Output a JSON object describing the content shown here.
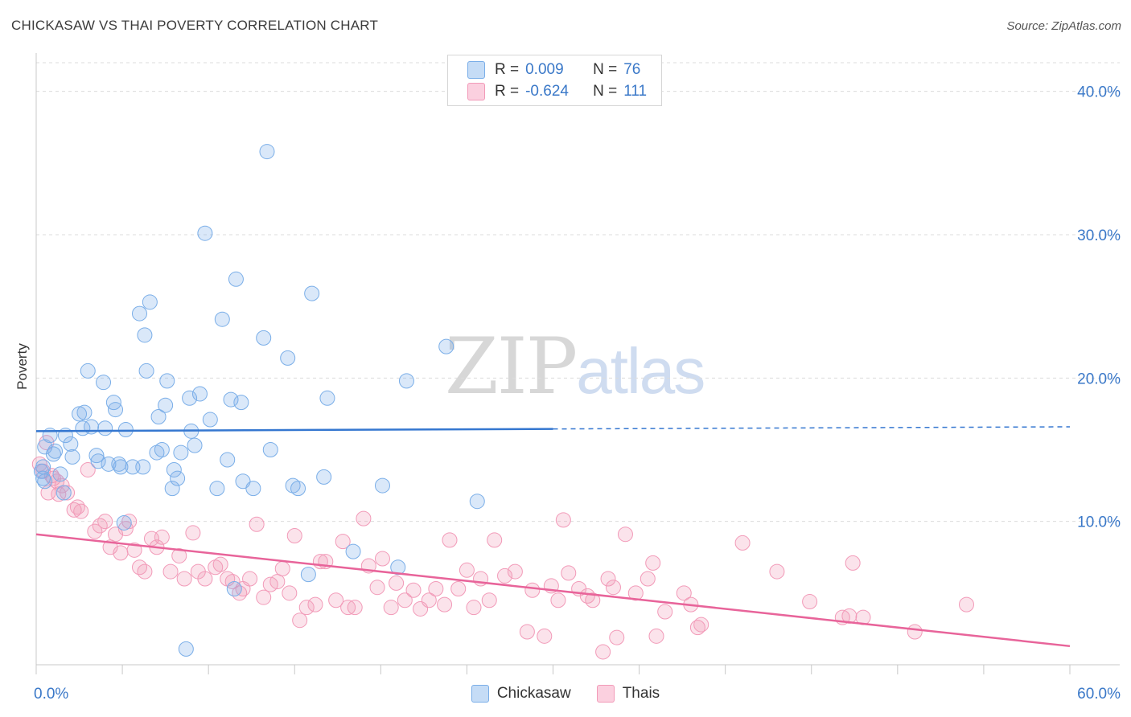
{
  "header": {
    "title": "CHICKASAW VS THAI POVERTY CORRELATION CHART",
    "source": "Source: ZipAtlas.com"
  },
  "watermark": {
    "zip": "ZIP",
    "atlas": "atlas"
  },
  "legend": {
    "rows": [
      {
        "r_label": "R =",
        "r_value": "0.009",
        "n_label": "N =",
        "n_value": "76",
        "color": "#7aaee8"
      },
      {
        "r_label": "R =",
        "r_value": "-0.624",
        "n_label": "N =",
        "n_value": "111",
        "color": "#f29ab8"
      }
    ]
  },
  "bottom_legend": [
    "Chickasaw",
    "Thais"
  ],
  "chart_data": {
    "type": "scatter",
    "title": "CHICKASAW VS THAI POVERTY CORRELATION CHART",
    "xlabel": "",
    "ylabel": "Poverty",
    "xlim": [
      0,
      60
    ],
    "ylim": [
      0,
      42
    ],
    "x_tick_labels": [
      "0.0%",
      "60.0%"
    ],
    "y_ticks": [
      10,
      20,
      30,
      40
    ],
    "y_tick_labels": [
      "10.0%",
      "20.0%",
      "30.0%",
      "40.0%"
    ],
    "grid": true,
    "legend_position": "top-center",
    "colors": {
      "chickasaw": "#7aaee8",
      "thais": "#f29ab8",
      "chickasaw_line": "#3577d0",
      "thais_line": "#e8649a",
      "tick_label": "#3a78c8"
    },
    "series": [
      {
        "name": "Chickasaw",
        "points": [
          [
            0.3,
            13.5
          ],
          [
            0.4,
            13.0
          ],
          [
            0.5,
            15.2
          ],
          [
            0.8,
            16.0
          ],
          [
            1.0,
            14.7
          ],
          [
            1.1,
            14.9
          ],
          [
            1.4,
            13.3
          ],
          [
            1.6,
            12.0
          ],
          [
            1.7,
            16.0
          ],
          [
            2.0,
            15.4
          ],
          [
            2.1,
            14.5
          ],
          [
            2.5,
            17.5
          ],
          [
            2.7,
            16.5
          ],
          [
            2.8,
            17.6
          ],
          [
            3.0,
            20.5
          ],
          [
            3.2,
            16.6
          ],
          [
            3.5,
            14.6
          ],
          [
            3.6,
            14.2
          ],
          [
            3.9,
            19.7
          ],
          [
            4.0,
            16.5
          ],
          [
            4.2,
            14.0
          ],
          [
            4.5,
            18.3
          ],
          [
            4.6,
            17.8
          ],
          [
            4.8,
            14.0
          ],
          [
            4.9,
            13.8
          ],
          [
            5.1,
            9.9
          ],
          [
            5.2,
            16.4
          ],
          [
            5.6,
            13.8
          ],
          [
            6.0,
            24.5
          ],
          [
            6.2,
            13.8
          ],
          [
            6.3,
            23.0
          ],
          [
            6.4,
            20.5
          ],
          [
            6.6,
            25.3
          ],
          [
            7.0,
            14.8
          ],
          [
            7.1,
            17.3
          ],
          [
            7.3,
            15.0
          ],
          [
            7.5,
            18.1
          ],
          [
            7.6,
            19.8
          ],
          [
            7.9,
            12.3
          ],
          [
            8.0,
            13.6
          ],
          [
            8.2,
            13.0
          ],
          [
            8.4,
            14.8
          ],
          [
            8.7,
            1.1
          ],
          [
            8.9,
            18.6
          ],
          [
            9.0,
            16.3
          ],
          [
            9.2,
            15.3
          ],
          [
            9.5,
            18.9
          ],
          [
            9.8,
            30.1
          ],
          [
            10.1,
            17.1
          ],
          [
            10.5,
            12.3
          ],
          [
            10.8,
            24.1
          ],
          [
            11.1,
            14.3
          ],
          [
            11.3,
            18.5
          ],
          [
            11.5,
            5.3
          ],
          [
            11.6,
            26.9
          ],
          [
            11.9,
            18.3
          ],
          [
            12.0,
            12.8
          ],
          [
            12.6,
            12.3
          ],
          [
            13.2,
            22.8
          ],
          [
            13.4,
            35.8
          ],
          [
            13.6,
            15.0
          ],
          [
            14.6,
            21.4
          ],
          [
            14.9,
            12.5
          ],
          [
            15.2,
            12.3
          ],
          [
            15.8,
            6.3
          ],
          [
            16.0,
            25.9
          ],
          [
            16.7,
            13.1
          ],
          [
            16.9,
            18.6
          ],
          [
            18.4,
            7.9
          ],
          [
            20.1,
            12.5
          ],
          [
            21.0,
            6.8
          ],
          [
            21.5,
            19.8
          ],
          [
            23.8,
            22.2
          ],
          [
            25.6,
            11.4
          ],
          [
            0.4,
            13.8
          ],
          [
            0.5,
            12.8
          ]
        ]
      },
      {
        "name": "Thais",
        "points": [
          [
            0.2,
            14.0
          ],
          [
            0.4,
            13.5
          ],
          [
            0.6,
            15.5
          ],
          [
            0.9,
            13.2
          ],
          [
            1.0,
            13.0
          ],
          [
            1.2,
            12.8
          ],
          [
            1.5,
            12.5
          ],
          [
            1.8,
            12.0
          ],
          [
            2.2,
            10.8
          ],
          [
            2.6,
            10.7
          ],
          [
            3.0,
            13.6
          ],
          [
            3.4,
            9.3
          ],
          [
            3.7,
            9.7
          ],
          [
            4.0,
            10.0
          ],
          [
            4.3,
            8.2
          ],
          [
            4.6,
            9.1
          ],
          [
            4.9,
            7.8
          ],
          [
            5.2,
            9.5
          ],
          [
            5.4,
            10.0
          ],
          [
            5.7,
            8.0
          ],
          [
            6.0,
            6.8
          ],
          [
            6.3,
            6.5
          ],
          [
            6.7,
            8.8
          ],
          [
            7.0,
            8.2
          ],
          [
            7.3,
            8.9
          ],
          [
            7.8,
            6.5
          ],
          [
            8.3,
            7.6
          ],
          [
            8.6,
            6.0
          ],
          [
            9.1,
            9.2
          ],
          [
            9.4,
            6.5
          ],
          [
            9.8,
            6.0
          ],
          [
            10.4,
            6.8
          ],
          [
            10.7,
            7.0
          ],
          [
            11.1,
            6.0
          ],
          [
            11.4,
            5.8
          ],
          [
            11.8,
            5.0
          ],
          [
            12.0,
            5.3
          ],
          [
            12.4,
            6.0
          ],
          [
            12.8,
            9.8
          ],
          [
            13.2,
            4.7
          ],
          [
            13.6,
            5.6
          ],
          [
            14.0,
            5.8
          ],
          [
            14.3,
            6.7
          ],
          [
            14.7,
            5.0
          ],
          [
            15.0,
            9.0
          ],
          [
            15.3,
            3.1
          ],
          [
            15.7,
            4.0
          ],
          [
            16.2,
            4.2
          ],
          [
            16.5,
            7.2
          ],
          [
            16.8,
            7.2
          ],
          [
            17.4,
            4.5
          ],
          [
            17.8,
            8.6
          ],
          [
            18.1,
            4.0
          ],
          [
            18.5,
            4.0
          ],
          [
            19.0,
            10.2
          ],
          [
            19.3,
            6.9
          ],
          [
            19.8,
            5.4
          ],
          [
            20.1,
            7.4
          ],
          [
            20.6,
            4.0
          ],
          [
            20.9,
            5.7
          ],
          [
            21.4,
            4.5
          ],
          [
            21.9,
            5.2
          ],
          [
            22.3,
            3.9
          ],
          [
            22.8,
            4.5
          ],
          [
            23.2,
            5.3
          ],
          [
            23.7,
            4.2
          ],
          [
            24.0,
            8.7
          ],
          [
            24.5,
            5.3
          ],
          [
            25.0,
            6.6
          ],
          [
            25.4,
            4.0
          ],
          [
            25.8,
            6.0
          ],
          [
            26.3,
            4.5
          ],
          [
            26.6,
            8.7
          ],
          [
            27.2,
            6.2
          ],
          [
            27.8,
            6.5
          ],
          [
            28.5,
            2.3
          ],
          [
            28.8,
            5.2
          ],
          [
            29.5,
            2.0
          ],
          [
            29.9,
            5.5
          ],
          [
            30.3,
            4.5
          ],
          [
            30.6,
            10.1
          ],
          [
            30.9,
            6.4
          ],
          [
            31.5,
            5.3
          ],
          [
            32.0,
            4.8
          ],
          [
            32.3,
            4.5
          ],
          [
            32.9,
            0.9
          ],
          [
            33.2,
            6.0
          ],
          [
            33.5,
            5.4
          ],
          [
            33.7,
            1.9
          ],
          [
            34.2,
            9.1
          ],
          [
            34.8,
            5.0
          ],
          [
            35.5,
            6.0
          ],
          [
            35.8,
            7.1
          ],
          [
            36.0,
            2.0
          ],
          [
            36.5,
            3.7
          ],
          [
            37.6,
            5.0
          ],
          [
            38.0,
            4.2
          ],
          [
            38.4,
            2.6
          ],
          [
            38.6,
            2.8
          ],
          [
            41.0,
            8.5
          ],
          [
            43.0,
            6.5
          ],
          [
            44.9,
            4.4
          ],
          [
            46.8,
            3.3
          ],
          [
            47.2,
            3.4
          ],
          [
            47.4,
            7.1
          ],
          [
            48.0,
            3.3
          ],
          [
            51.0,
            2.3
          ],
          [
            54.0,
            4.2
          ],
          [
            0.7,
            12.0
          ],
          [
            1.3,
            11.9
          ],
          [
            2.4,
            11.0
          ]
        ]
      }
    ],
    "trend_lines": [
      {
        "name": "Chickasaw",
        "x": [
          0,
          30,
          60
        ],
        "y": [
          16.3,
          16.45,
          16.6
        ],
        "dashed_from_x": 30
      },
      {
        "name": "Thais",
        "x": [
          0,
          60
        ],
        "y": [
          9.1,
          1.3
        ]
      }
    ]
  }
}
